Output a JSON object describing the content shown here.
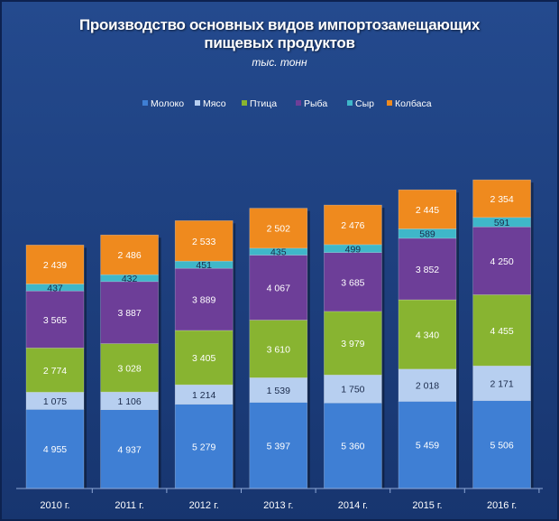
{
  "chart_data": {
    "type": "bar",
    "stacked": true,
    "title": "Производство основных видов импортозамещающих пищевых продуктов",
    "title_lines": [
      "Производство основных видов импортозамещающих",
      "пищевых продуктов"
    ],
    "subtitle": "тыс. тонн",
    "categories": [
      "2010 г.",
      "2011 г.",
      "2012 г.",
      "2013 г.",
      "2014 г.",
      "2015 г.",
      "2016 г."
    ],
    "series": [
      {
        "name": "Молоко",
        "values": [
          4955,
          4937,
          5279,
          5397,
          5360,
          5459,
          5506
        ],
        "labels": [
          "4 955",
          "4 937",
          "5 279",
          "5 397",
          "5 360",
          "5 459",
          "5 506"
        ],
        "color": "#3f7fd4"
      },
      {
        "name": "Мясо",
        "values": [
          1075,
          1106,
          1214,
          1539,
          1750,
          2018,
          2171
        ],
        "labels": [
          "1 075",
          "1 106",
          "1 214",
          "1 539",
          "1 750",
          "2 018",
          "2 171"
        ],
        "color": "#b7cff0"
      },
      {
        "name": "Птица",
        "values": [
          2774,
          3028,
          3405,
          3610,
          3979,
          4340,
          4455
        ],
        "labels": [
          "2 774",
          "3 028",
          "3 405",
          "3 610",
          "3 979",
          "4 340",
          "4 455"
        ],
        "color": "#88b431"
      },
      {
        "name": "Рыба",
        "values": [
          3565,
          3887,
          3889,
          4067,
          3685,
          3852,
          4250
        ],
        "labels": [
          "3 565",
          "3 887",
          "3 889",
          "4 067",
          "3 685",
          "3 852",
          "4 250"
        ],
        "color": "#6d3e98"
      },
      {
        "name": "Сыр",
        "values": [
          437,
          432,
          451,
          435,
          499,
          589,
          591
        ],
        "labels": [
          "437",
          "432",
          "451",
          "435",
          "499",
          "589",
          "591"
        ],
        "color": "#3fb7c9"
      },
      {
        "name": "Колбаса",
        "values": [
          2439,
          2486,
          2533,
          2502,
          2476,
          2445,
          2354
        ],
        "labels": [
          "2 439",
          "2 486",
          "2 533",
          "2 502",
          "2 476",
          "2 445",
          "2 354"
        ],
        "color": "#ef8a1e"
      }
    ],
    "legend_position": "top",
    "grid": false,
    "ylim": [
      0,
      20000
    ],
    "background": "#1d3f80"
  }
}
